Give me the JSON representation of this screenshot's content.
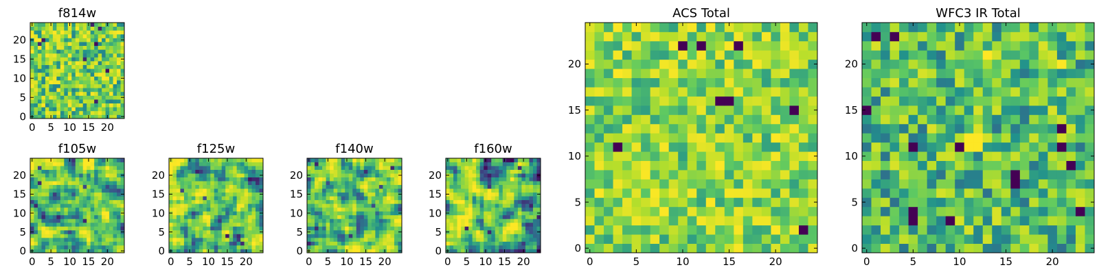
{
  "colormap": {
    "name": "viridis",
    "stops": [
      "#440154",
      "#3b528b",
      "#21918c",
      "#5ec962",
      "#b5de2b",
      "#fde725"
    ]
  },
  "chart_data": [
    {
      "type": "heatmap",
      "title": "f814w",
      "grid": false,
      "xlim": [
        0,
        24
      ],
      "ylim": [
        0,
        24
      ],
      "xticks": [
        0,
        5,
        10,
        15,
        20
      ],
      "yticks": [
        0,
        5,
        10,
        15,
        20
      ],
      "cell_range": [
        0,
        24
      ],
      "seed": 11,
      "style": "noisy"
    },
    {
      "type": "heatmap",
      "title": "f105w",
      "grid": false,
      "xlim": [
        0,
        24
      ],
      "ylim": [
        0,
        24
      ],
      "xticks": [
        0,
        5,
        10,
        15,
        20
      ],
      "yticks": [
        0,
        5,
        10,
        15,
        20
      ],
      "cell_range": [
        0,
        24
      ],
      "seed": 23,
      "style": "smooth"
    },
    {
      "type": "heatmap",
      "title": "f125w",
      "grid": false,
      "xlim": [
        0,
        24
      ],
      "ylim": [
        0,
        24
      ],
      "xticks": [
        0,
        5,
        10,
        15,
        20
      ],
      "yticks": [
        0,
        5,
        10,
        15,
        20
      ],
      "cell_range": [
        0,
        24
      ],
      "seed": 37,
      "style": "smooth"
    },
    {
      "type": "heatmap",
      "title": "f140w",
      "grid": false,
      "xlim": [
        0,
        24
      ],
      "ylim": [
        0,
        24
      ],
      "xticks": [
        0,
        5,
        10,
        15,
        20
      ],
      "yticks": [
        0,
        5,
        10,
        15,
        20
      ],
      "cell_range": [
        0,
        24
      ],
      "seed": 41,
      "style": "smooth"
    },
    {
      "type": "heatmap",
      "title": "f160w",
      "grid": false,
      "xlim": [
        0,
        24
      ],
      "ylim": [
        0,
        24
      ],
      "xticks": [
        0,
        5,
        10,
        15,
        20
      ],
      "yticks": [
        0,
        5,
        10,
        15,
        20
      ],
      "cell_range": [
        0,
        24
      ],
      "seed": 53,
      "style": "smooth"
    },
    {
      "type": "heatmap",
      "title": "ACS Total",
      "grid": false,
      "xlim": [
        0,
        24
      ],
      "ylim": [
        0,
        24
      ],
      "xticks": [
        0,
        5,
        10,
        15,
        20
      ],
      "yticks": [
        0,
        5,
        10,
        15,
        20
      ],
      "cell_range": [
        0,
        24
      ],
      "seed": 67,
      "style": "bright",
      "dark_cells": [
        [
          10,
          22
        ],
        [
          12,
          22
        ],
        [
          16,
          22
        ],
        [
          14,
          16
        ],
        [
          15,
          16
        ],
        [
          22,
          15
        ],
        [
          3,
          11
        ],
        [
          23,
          2
        ]
      ]
    },
    {
      "type": "heatmap",
      "title": "WFC3 IR Total",
      "grid": false,
      "xlim": [
        0,
        24
      ],
      "ylim": [
        0,
        24
      ],
      "xticks": [
        0,
        5,
        10,
        15,
        20
      ],
      "yticks": [
        0,
        5,
        10,
        15,
        20
      ],
      "cell_range": [
        0,
        24
      ],
      "seed": 79,
      "style": "medium",
      "dark_cells": [
        [
          1,
          23
        ],
        [
          3,
          23
        ],
        [
          5,
          4
        ],
        [
          5,
          3
        ],
        [
          9,
          3
        ],
        [
          10,
          11
        ],
        [
          16,
          7
        ],
        [
          16,
          8
        ],
        [
          21,
          13
        ],
        [
          21,
          11
        ],
        [
          22,
          9
        ],
        [
          23,
          4
        ],
        [
          0,
          15
        ],
        [
          5,
          11
        ]
      ],
      "bright_cells": [
        [
          11,
          12
        ],
        [
          12,
          12
        ],
        [
          11,
          11
        ],
        [
          12,
          11
        ],
        [
          21,
          20
        ],
        [
          13,
          21
        ]
      ]
    }
  ]
}
